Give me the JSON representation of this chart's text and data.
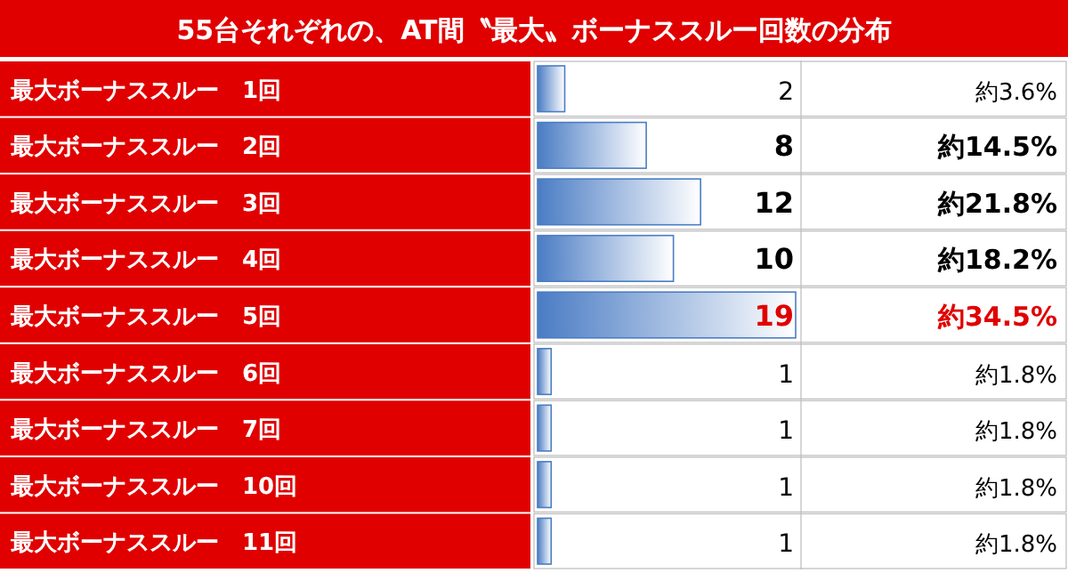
{
  "chart_data": {
    "type": "bar",
    "orientation": "horizontal",
    "title": "55台それぞれの、AT間〝最大〟ボーナススルー回数の分布",
    "categories": [
      "最大ボーナススルー　1回",
      "最大ボーナススルー　2回",
      "最大ボーナススルー　3回",
      "最大ボーナススルー　4回",
      "最大ボーナススルー　5回",
      "最大ボーナススルー　6回",
      "最大ボーナススルー　7回",
      "最大ボーナススルー　10回",
      "最大ボーナススルー　11回"
    ],
    "values": [
      2,
      8,
      12,
      10,
      19,
      1,
      1,
      1,
      1
    ],
    "color": "#4a7cc4",
    "data_labels": true,
    "annotations": [
      "約3.6%",
      "約14.5%",
      "約21.8%",
      "約18.2%",
      "約34.5%",
      "約1.8%",
      "約1.8%",
      "約1.8%",
      "約1.8%"
    ]
  }
}
